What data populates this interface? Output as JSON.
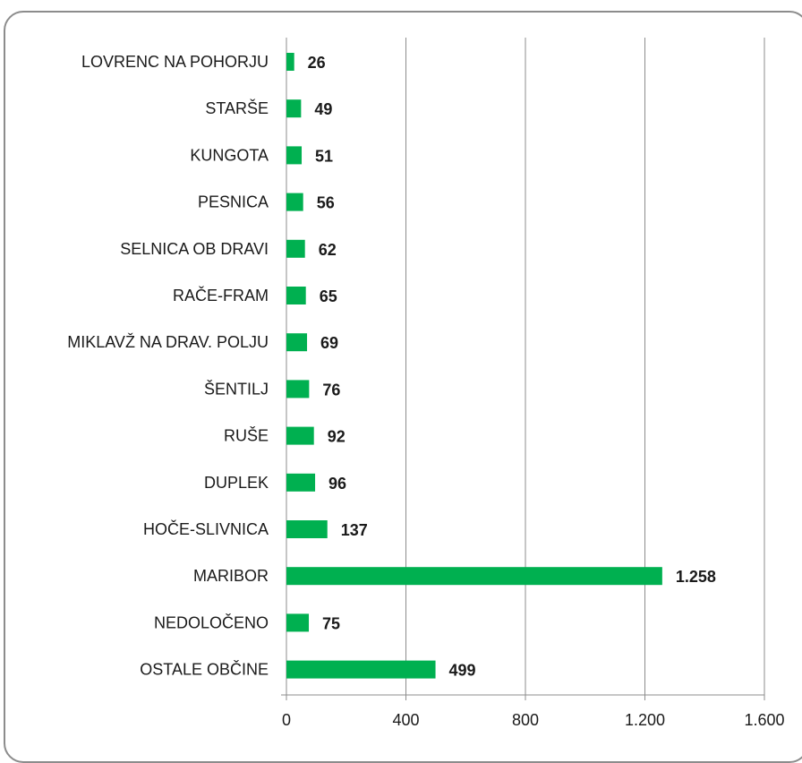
{
  "chart_data": {
    "type": "bar",
    "orientation": "horizontal",
    "categories": [
      "LOVRENC NA POHORJU",
      "STARŠE",
      "KUNGOTA",
      "PESNICA",
      "SELNICA OB DRAVI",
      "RAČE-FRAM",
      "MIKLAVŽ NA DRAV. POLJU",
      "ŠENTILJ",
      "RUŠE",
      "DUPLEK",
      "HOČE-SLIVNICA",
      "MARIBOR",
      "NEDOLOČENO",
      "OSTALE OBČINE"
    ],
    "values": [
      26,
      49,
      51,
      56,
      62,
      65,
      69,
      76,
      92,
      96,
      137,
      1258,
      75,
      499
    ],
    "value_labels": [
      "26",
      "49",
      "51",
      "56",
      "62",
      "65",
      "69",
      "76",
      "92",
      "96",
      "137",
      "1.258",
      "75",
      "499"
    ],
    "xlim": [
      0,
      1600
    ],
    "xticks": [
      0,
      400,
      800,
      1200,
      1600
    ],
    "xtick_labels": [
      "0",
      "400",
      "800",
      "1.200",
      "1.600"
    ],
    "title": "",
    "xlabel": "",
    "ylabel": "",
    "grid": "vertical",
    "bar_color": "#00b050",
    "grid_color": "#8c8c8c"
  }
}
